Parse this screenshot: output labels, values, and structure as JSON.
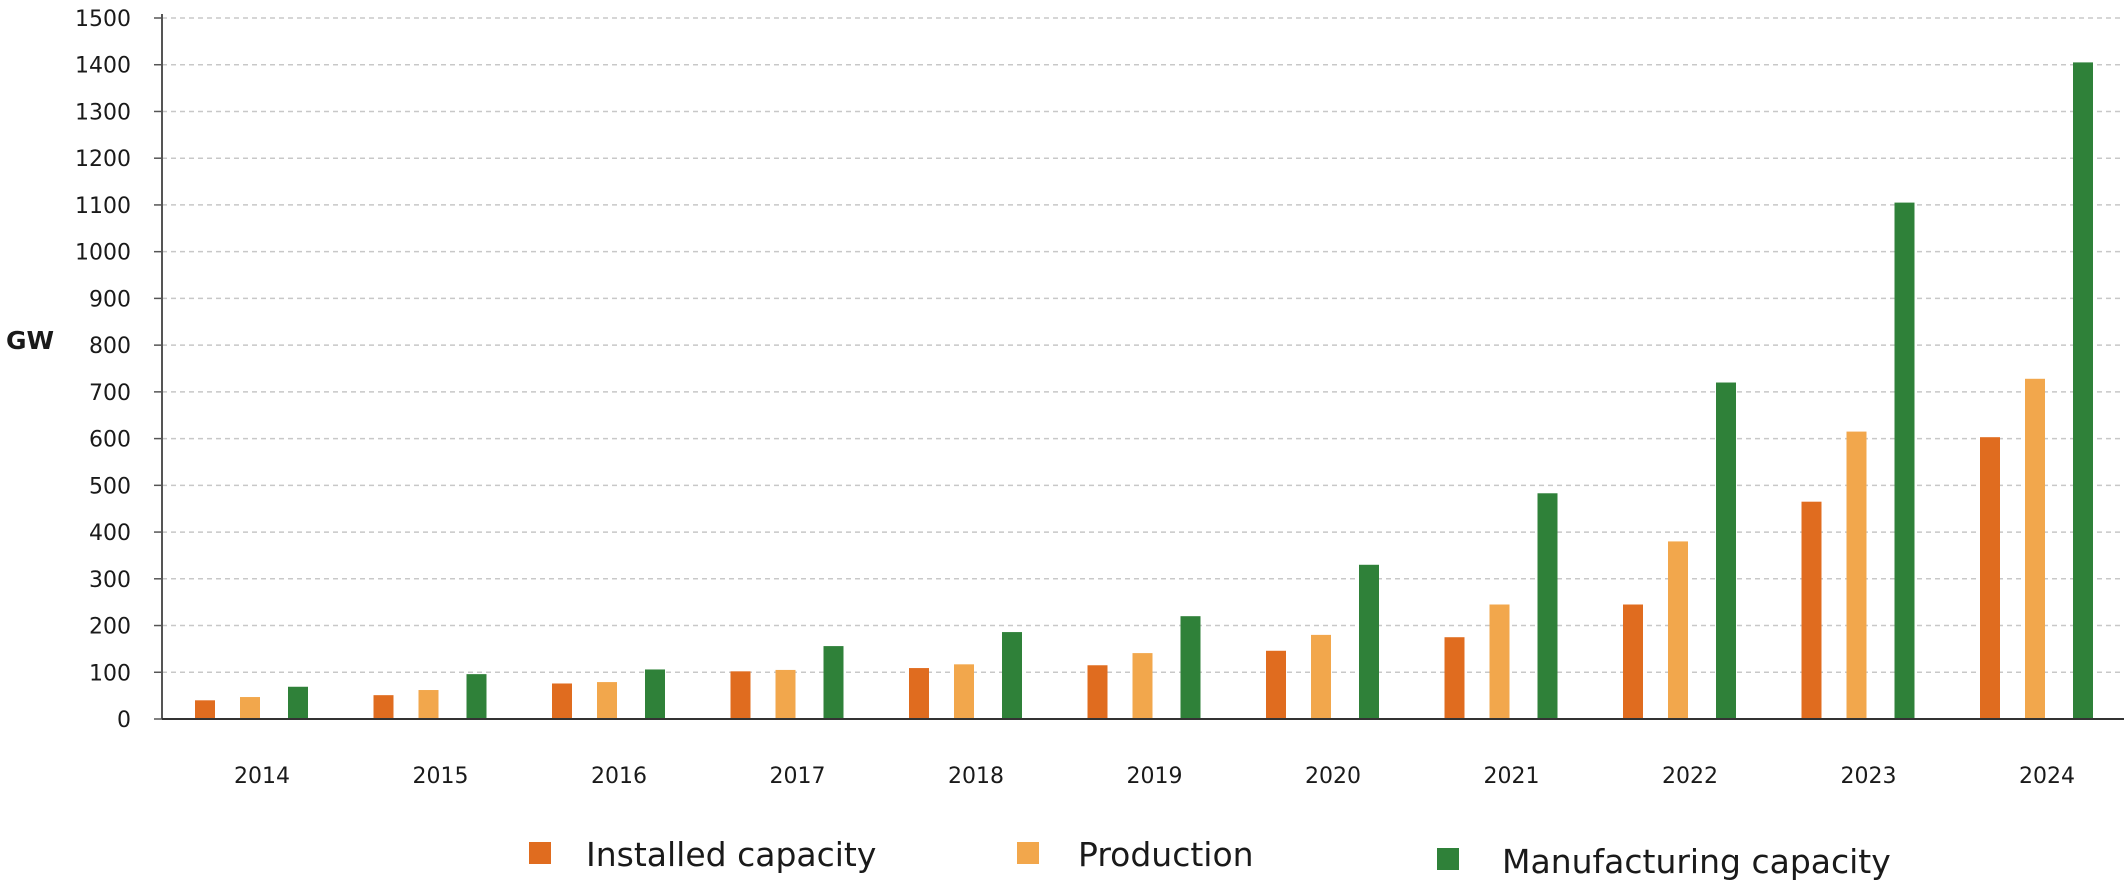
{
  "chart_data": {
    "type": "bar",
    "title": "",
    "xlabel": "",
    "ylabel": "GW",
    "ylim": [
      0,
      1500
    ],
    "yticks": [
      0,
      100,
      200,
      300,
      400,
      500,
      600,
      700,
      800,
      900,
      1000,
      1100,
      1200,
      1300,
      1400,
      1500
    ],
    "grid": true,
    "legend_position": "bottom",
    "categories": [
      "2014",
      "2015",
      "2016",
      "2017",
      "2018",
      "2019",
      "2020",
      "2021",
      "2022",
      "2023",
      "2024"
    ],
    "series": [
      {
        "name": "Installed capacity",
        "color": "#E06C1F",
        "values": [
          40,
          51,
          76,
          102,
          109,
          115,
          146,
          175,
          245,
          465,
          603
        ]
      },
      {
        "name": "Production",
        "color": "#F2A74C",
        "values": [
          47,
          62,
          79,
          105,
          117,
          141,
          180,
          245,
          380,
          615,
          728
        ]
      },
      {
        "name": "Manufacturing capacity",
        "color": "#2F8139",
        "values": [
          69,
          96,
          106,
          156,
          186,
          220,
          330,
          483,
          720,
          1105,
          1405
        ]
      }
    ]
  }
}
